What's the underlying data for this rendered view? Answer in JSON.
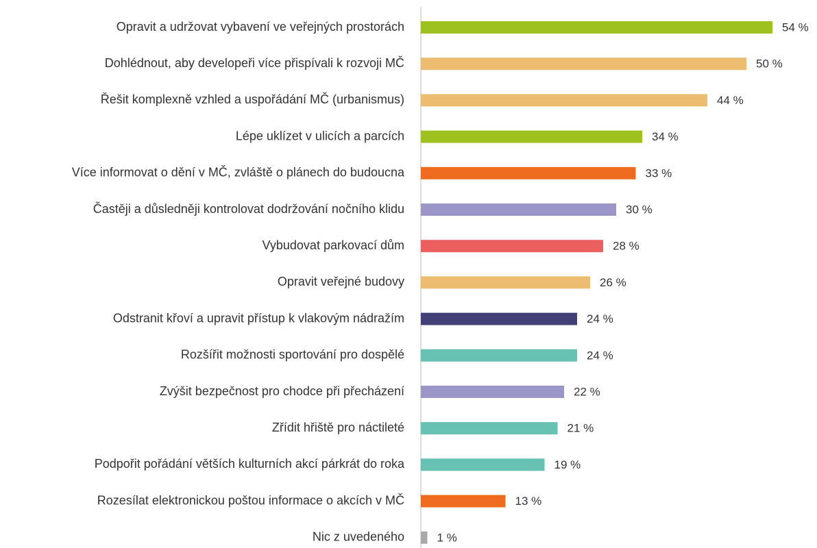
{
  "chart_data": {
    "type": "bar",
    "orientation": "horizontal",
    "categories": [
      "Opravit a udržovat vybavení ve veřejných prostorách",
      "Dohlédnout, aby developeři více přispívali k rozvoji MČ",
      "Řešit komplexně vzhled a uspořádání MČ (urbanismus)",
      "Lépe uklízet v ulicích a parcích",
      "Více informovat o dění v MČ, zvláště o plánech do budoucna",
      "Častěji a důsledněji kontrolovat dodržování nočního klidu",
      "Vybudovat parkovací dům",
      "Opravit veřejné budovy",
      "Odstranit křoví a upravit přístup k vlakovým nádražím",
      "Rozšířit možnosti sportování pro dospělé",
      "Zvýšit bezpečnost pro chodce při přecházení",
      "Zřídit hřiště pro náctileté",
      "Podpořit pořádání větších kulturních akcí párkrát do roka",
      "Rozesílat elektronickou poštou informace o akcích v MČ",
      "Nic z uvedeného"
    ],
    "values": [
      54,
      50,
      44,
      34,
      33,
      30,
      28,
      26,
      24,
      24,
      22,
      21,
      19,
      13,
      1
    ],
    "value_labels": [
      "54 %",
      "50 %",
      "44 %",
      "34 %",
      "33 %",
      "30 %",
      "28 %",
      "26 %",
      "24 %",
      "24 %",
      "22 %",
      "21 %",
      "19 %",
      "13 %",
      "1 %"
    ],
    "colors": [
      "#9dc21f",
      "#ecbd70",
      "#ecbd70",
      "#9dc21f",
      "#ee6b1f",
      "#9b96c8",
      "#ec5f5f",
      "#ecbd70",
      "#433f77",
      "#67c2b4",
      "#9b96c8",
      "#67c2b4",
      "#67c2b4",
      "#ee6b1f",
      "#aaaaaa"
    ],
    "xlim": [
      0,
      60
    ]
  }
}
